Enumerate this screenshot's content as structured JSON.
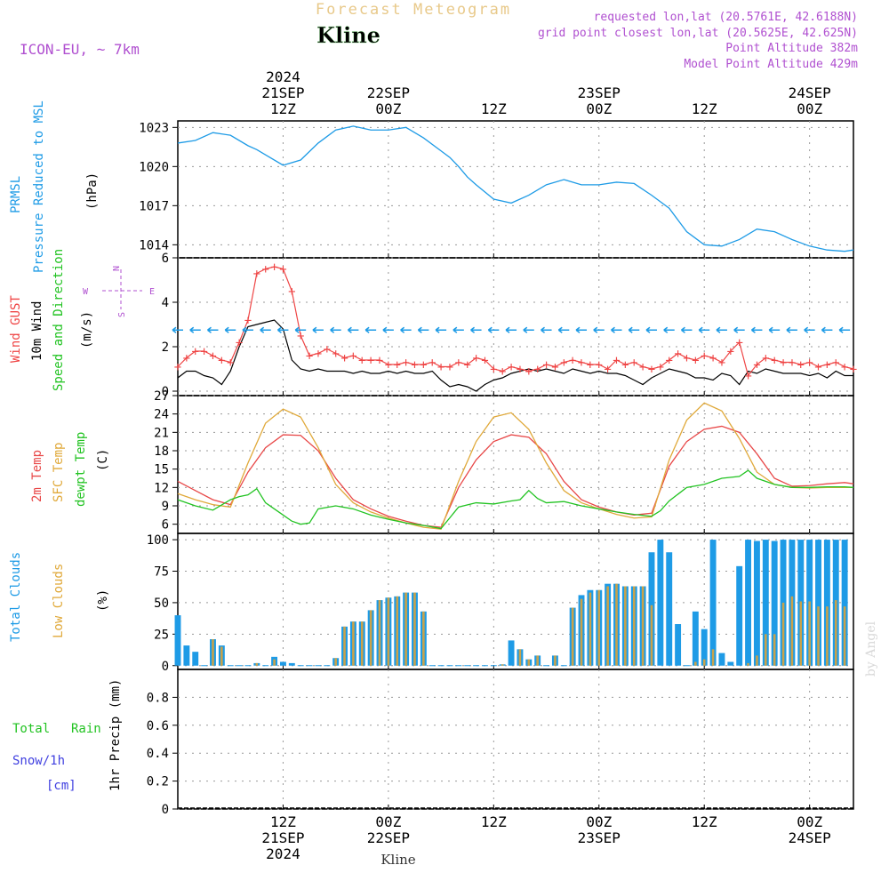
{
  "header": {
    "forecast_title": "Forecast Meteogram",
    "location": "Kline",
    "model": "ICON-EU, ~ 7km",
    "requested": "requested lon,lat (20.5761E, 42.6188N)",
    "grid_point": "grid point closest lon,lat (20.5625E, 42.625N)",
    "point_altitude": "Point Altitude 382m",
    "model_altitude": "Model Point Altitude 429m"
  },
  "time_axis": {
    "year": "2024",
    "ticks": [
      {
        "t": 12,
        "top": [
          "21SEP",
          "12Z"
        ],
        "bottom": [
          "12Z",
          "21SEP",
          "2024"
        ]
      },
      {
        "t": 24,
        "top": [
          "22SEP",
          "00Z"
        ],
        "bottom": [
          "00Z",
          "22SEP"
        ]
      },
      {
        "t": 36,
        "top": [
          "12Z"
        ],
        "bottom": [
          "12Z"
        ]
      },
      {
        "t": 48,
        "top": [
          "23SEP",
          "00Z"
        ],
        "bottom": [
          "00Z",
          "23SEP"
        ]
      },
      {
        "t": 60,
        "top": [
          "12Z"
        ],
        "bottom": [
          "12Z"
        ]
      },
      {
        "t": 72,
        "top": [
          "24SEP",
          "00Z"
        ],
        "bottom": [
          "00Z",
          "24SEP"
        ]
      }
    ],
    "footer_location": "Kline",
    "credit": "by Angel"
  },
  "panels": {
    "pressure": {
      "label_lines": [
        "PRMSL",
        "Pressure Reduced to MSL"
      ],
      "unit": "(hPa)"
    },
    "wind": {
      "label_gust": "Wind GUST",
      "label_wind": "10m Wind",
      "label_dir": "Speed and Direction",
      "unit": "(m/s)",
      "compass": {
        "n": "N",
        "s": "S",
        "w": "W",
        "e": "E"
      }
    },
    "temp": {
      "label_2m": "2m Temp",
      "label_sfc": "SFC Temp",
      "label_dew": "dewpt Temp",
      "unit": "(C)"
    },
    "clouds": {
      "label_total": "Total Clouds",
      "label_low": "Low Clouds",
      "unit": "(%)"
    },
    "precip": {
      "label_total": "Total",
      "label_rain": "Rain",
      "label_snow": "Snow/1h",
      "label_snow_unit": "[cm]",
      "label_axis": "1hr Precip (mm)"
    }
  },
  "colors": {
    "pressure": "#1e9be6",
    "gust": "#ef4545",
    "wind": "#000000",
    "t2m": "#e84848",
    "tsfc": "#e0a93a",
    "dew": "#22c322",
    "total_clouds": "#1e9be6",
    "low_clouds": "#c9a24a",
    "rain": "#22c322",
    "snow": "#4040e0",
    "title": "#e8c98a",
    "info": "#b050d0"
  },
  "chart_data": [
    {
      "type": "line",
      "name": "pressure",
      "ylim": [
        1013,
        1023.5
      ],
      "yticks": [
        1014,
        1017,
        1020,
        1023
      ],
      "series": [
        {
          "name": "PRMSL",
          "x": [
            0,
            2,
            4,
            6,
            8,
            9,
            10,
            12,
            14,
            16,
            18,
            20,
            22,
            24,
            26,
            28,
            30,
            31,
            32,
            33,
            34,
            36,
            38,
            40,
            42,
            44,
            46,
            48,
            50,
            52,
            54,
            56,
            58,
            60,
            62,
            64,
            66,
            68,
            70,
            72,
            74,
            76,
            77
          ],
          "values": [
            1021.8,
            1022.0,
            1022.6,
            1022.4,
            1021.6,
            1021.3,
            1020.9,
            1020.1,
            1020.5,
            1021.8,
            1022.8,
            1023.1,
            1022.8,
            1022.8,
            1023.0,
            1022.2,
            1021.2,
            1020.7,
            1020.0,
            1019.2,
            1018.6,
            1017.5,
            1017.2,
            1017.8,
            1018.6,
            1019.0,
            1018.6,
            1018.6,
            1018.8,
            1018.7,
            1017.8,
            1016.8,
            1015.0,
            1014.0,
            1013.9,
            1014.4,
            1015.2,
            1015.0,
            1014.4,
            1013.9,
            1013.6,
            1013.5,
            1013.6
          ]
        }
      ]
    },
    {
      "type": "line",
      "name": "wind",
      "ylim": [
        -0.2,
        6
      ],
      "yticks": [
        0,
        2,
        4,
        6
      ],
      "series": [
        {
          "name": "Wind GUST",
          "x": [
            0,
            1,
            2,
            3,
            4,
            5,
            6,
            7,
            8,
            9,
            10,
            11,
            12,
            13,
            14,
            15,
            16,
            17,
            18,
            19,
            20,
            21,
            22,
            23,
            24,
            25,
            26,
            27,
            28,
            29,
            30,
            31,
            32,
            33,
            34,
            35,
            36,
            37,
            38,
            39,
            40,
            41,
            42,
            43,
            44,
            45,
            46,
            47,
            48,
            49,
            50,
            51,
            52,
            53,
            54,
            55,
            56,
            57,
            58,
            59,
            60,
            61,
            62,
            63,
            64,
            65,
            66,
            67,
            68,
            69,
            70,
            71,
            72,
            73,
            74,
            75,
            76,
            77
          ],
          "values": [
            1.1,
            1.5,
            1.8,
            1.8,
            1.6,
            1.4,
            1.3,
            2.2,
            3.2,
            5.3,
            5.5,
            5.6,
            5.5,
            4.5,
            2.5,
            1.6,
            1.7,
            1.9,
            1.7,
            1.5,
            1.6,
            1.4,
            1.4,
            1.4,
            1.2,
            1.2,
            1.3,
            1.2,
            1.2,
            1.3,
            1.1,
            1.1,
            1.3,
            1.2,
            1.5,
            1.4,
            1.0,
            0.9,
            1.1,
            1.0,
            0.9,
            1.0,
            1.2,
            1.1,
            1.3,
            1.4,
            1.3,
            1.2,
            1.2,
            1.0,
            1.4,
            1.2,
            1.3,
            1.1,
            1.0,
            1.1,
            1.4,
            1.7,
            1.5,
            1.4,
            1.6,
            1.5,
            1.3,
            1.8,
            2.2,
            0.7,
            1.2,
            1.5,
            1.4,
            1.3,
            1.3,
            1.2,
            1.3,
            1.1,
            1.2,
            1.3,
            1.1,
            1.0
          ]
        },
        {
          "name": "10m Wind",
          "x": [
            0,
            1,
            2,
            3,
            4,
            5,
            6,
            7,
            8,
            9,
            10,
            11,
            12,
            13,
            14,
            15,
            16,
            17,
            18,
            19,
            20,
            21,
            22,
            23,
            24,
            25,
            26,
            27,
            28,
            29,
            30,
            31,
            32,
            33,
            34,
            35,
            36,
            37,
            38,
            39,
            40,
            41,
            42,
            43,
            44,
            45,
            46,
            47,
            48,
            49,
            50,
            51,
            52,
            53,
            54,
            55,
            56,
            57,
            58,
            59,
            60,
            61,
            62,
            63,
            64,
            65,
            66,
            67,
            68,
            69,
            70,
            71,
            72,
            73,
            74,
            75,
            76,
            77
          ],
          "values": [
            0.6,
            0.9,
            0.9,
            0.7,
            0.6,
            0.3,
            0.9,
            2.0,
            2.9,
            3.0,
            3.1,
            3.2,
            2.8,
            1.4,
            1.0,
            0.9,
            1.0,
            0.9,
            0.9,
            0.9,
            0.8,
            0.9,
            0.8,
            0.8,
            0.9,
            0.8,
            0.9,
            0.8,
            0.8,
            0.9,
            0.5,
            0.2,
            0.3,
            0.2,
            0.0,
            0.3,
            0.5,
            0.6,
            0.8,
            0.9,
            1.0,
            0.9,
            1.0,
            0.9,
            0.8,
            1.0,
            0.9,
            0.8,
            0.9,
            0.8,
            0.8,
            0.7,
            0.5,
            0.3,
            0.6,
            0.8,
            1.0,
            0.9,
            0.8,
            0.6,
            0.6,
            0.5,
            0.8,
            0.7,
            0.3,
            0.9,
            0.8,
            1.0,
            0.9,
            0.8,
            0.8,
            0.8,
            0.7,
            0.8,
            0.6,
            0.9,
            0.7,
            0.7
          ]
        }
      ]
    },
    {
      "type": "line",
      "name": "temperature",
      "ylim": [
        4.5,
        27
      ],
      "yticks": [
        6,
        9,
        12,
        15,
        18,
        21,
        24,
        27
      ],
      "series": [
        {
          "name": "2m Temp",
          "x": [
            0,
            2,
            4,
            6,
            8,
            10,
            12,
            14,
            16,
            18,
            20,
            22,
            24,
            26,
            28,
            30,
            32,
            34,
            36,
            38,
            40,
            42,
            44,
            46,
            48,
            50,
            52,
            54,
            56,
            58,
            60,
            62,
            64,
            66,
            68,
            70,
            72,
            74,
            76,
            77
          ],
          "values": [
            13.0,
            11.5,
            10.0,
            9.2,
            14.5,
            18.5,
            20.6,
            20.5,
            18.0,
            13.5,
            10.0,
            8.5,
            7.3,
            6.5,
            5.8,
            5.5,
            12.0,
            16.5,
            19.5,
            20.6,
            20.2,
            17.5,
            13.0,
            10.0,
            8.8,
            8.0,
            7.5,
            7.8,
            15.5,
            19.5,
            21.5,
            22.0,
            21.0,
            17.5,
            13.5,
            12.2,
            12.3,
            12.6,
            12.8,
            12.6
          ]
        },
        {
          "name": "SFC Temp",
          "x": [
            0,
            2,
            4,
            6,
            8,
            10,
            12,
            14,
            16,
            18,
            20,
            22,
            24,
            26,
            28,
            30,
            32,
            34,
            36,
            38,
            40,
            42,
            44,
            46,
            48,
            50,
            52,
            54,
            56,
            58,
            60,
            62,
            64,
            66,
            68,
            70,
            72,
            74,
            76,
            77
          ],
          "values": [
            11.0,
            10.0,
            9.2,
            8.8,
            16.0,
            22.5,
            24.8,
            23.5,
            18.5,
            12.5,
            9.5,
            8.0,
            7.0,
            6.2,
            5.5,
            5.2,
            13.0,
            19.5,
            23.5,
            24.2,
            21.5,
            16.0,
            11.5,
            9.5,
            8.5,
            7.6,
            7.0,
            7.2,
            16.5,
            23.0,
            25.8,
            24.5,
            20.0,
            14.5,
            12.5,
            12.0,
            11.9,
            12.0,
            12.0,
            12.0
          ]
        },
        {
          "name": "dewpt Temp",
          "x": [
            0,
            2,
            4,
            6,
            7,
            8,
            9,
            10,
            11,
            12,
            13,
            14,
            15,
            16,
            18,
            20,
            22,
            24,
            26,
            28,
            30,
            32,
            34,
            36,
            38,
            39,
            40,
            41,
            42,
            44,
            46,
            48,
            50,
            52,
            54,
            55,
            56,
            58,
            60,
            62,
            64,
            65,
            66,
            68,
            70,
            72,
            74,
            76,
            77
          ],
          "values": [
            10.0,
            9.0,
            8.3,
            10.0,
            10.5,
            10.8,
            11.8,
            9.5,
            8.5,
            7.5,
            6.5,
            6.0,
            6.2,
            8.5,
            9.0,
            8.5,
            7.5,
            6.8,
            6.2,
            5.8,
            5.3,
            8.8,
            9.5,
            9.3,
            9.8,
            10.0,
            11.5,
            10.2,
            9.5,
            9.7,
            9.0,
            8.5,
            8.0,
            7.6,
            7.3,
            8.2,
            9.8,
            12.0,
            12.5,
            13.5,
            13.8,
            14.8,
            13.5,
            12.5,
            12.0,
            12.0,
            12.1,
            12.1,
            12.0
          ]
        }
      ]
    },
    {
      "type": "bar",
      "name": "clouds",
      "ylim": [
        -3,
        105
      ],
      "yticks": [
        0,
        25,
        50,
        75,
        100
      ],
      "x": [
        0,
        1,
        2,
        3,
        4,
        5,
        6,
        7,
        8,
        9,
        10,
        11,
        12,
        13,
        14,
        15,
        16,
        17,
        18,
        19,
        20,
        21,
        22,
        23,
        24,
        25,
        26,
        27,
        28,
        29,
        30,
        31,
        32,
        33,
        34,
        35,
        36,
        37,
        38,
        39,
        40,
        41,
        42,
        43,
        44,
        45,
        46,
        47,
        48,
        49,
        50,
        51,
        52,
        53,
        54,
        55,
        56,
        57,
        58,
        59,
        60,
        61,
        62,
        63,
        64,
        65,
        66,
        67,
        68,
        69,
        70,
        71,
        72,
        73,
        74,
        75,
        76
      ],
      "series": [
        {
          "name": "Total Clouds",
          "values": [
            40,
            16,
            11,
            0,
            21,
            16,
            0,
            0,
            0,
            2,
            0,
            7,
            3,
            2,
            0,
            0,
            0,
            0,
            6,
            31,
            35,
            35,
            44,
            52,
            54,
            55,
            58,
            58,
            43,
            0,
            0,
            0,
            0,
            0,
            0,
            0,
            0,
            1,
            20,
            13,
            5,
            8,
            0,
            8,
            0,
            46,
            56,
            60,
            60,
            65,
            65,
            63,
            63,
            63,
            90,
            100,
            90,
            33,
            0,
            43,
            29,
            100,
            10,
            3,
            79,
            100,
            99,
            100,
            99,
            100,
            100,
            100,
            100,
            100,
            100,
            100,
            100
          ]
        },
        {
          "name": "Low Clouds",
          "values": [
            0,
            0,
            0,
            0,
            21,
            15,
            0,
            0,
            0,
            2,
            0,
            5,
            0,
            0,
            0,
            0,
            0,
            0,
            6,
            31,
            35,
            35,
            44,
            52,
            54,
            55,
            58,
            58,
            43,
            0,
            0,
            0,
            0,
            0,
            0,
            0,
            0,
            1,
            0,
            13,
            5,
            8,
            0,
            8,
            0,
            46,
            53,
            58,
            60,
            63,
            65,
            63,
            63,
            63,
            48,
            0,
            0,
            0,
            0,
            3,
            5,
            13,
            0,
            0,
            0,
            2,
            8,
            25,
            25,
            50,
            55,
            51,
            51,
            47,
            47,
            52,
            47
          ]
        }
      ]
    },
    {
      "type": "bar",
      "name": "precipitation",
      "ylim": [
        0,
        1.0
      ],
      "yticks": [
        0,
        0.2,
        0.4,
        0.6,
        0.8
      ],
      "series": [
        {
          "name": "1hr Precip",
          "values": []
        }
      ]
    }
  ]
}
